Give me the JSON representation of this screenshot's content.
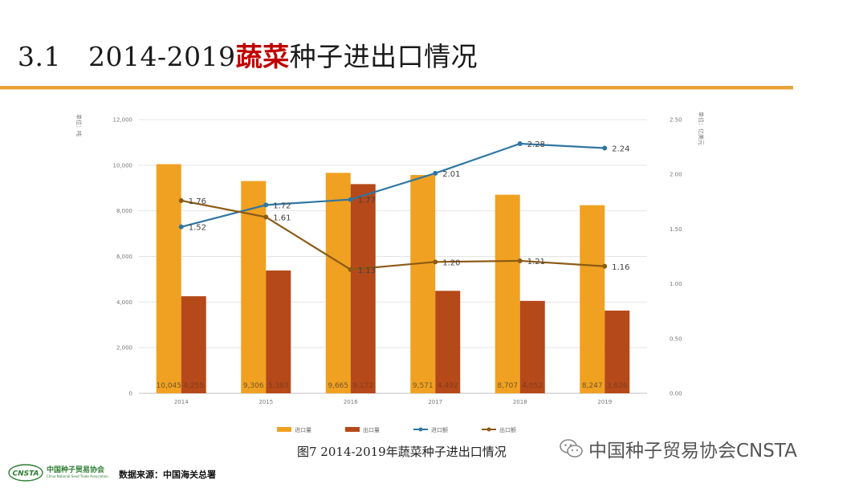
{
  "header": {
    "section_num": "3.1",
    "title_prefix": "2014-2019",
    "title_highlight": "蔬菜",
    "title_suffix": "种子进出口情况"
  },
  "chart_data": {
    "type": "bar",
    "categories": [
      "2014",
      "2015",
      "2016",
      "2017",
      "2018",
      "2019"
    ],
    "left_axis": {
      "label": "单位：吨",
      "ylim": [
        0,
        12000
      ],
      "ticks": [
        "0",
        "2,000",
        "4,000",
        "6,000",
        "8,000",
        "10,000",
        "12,000"
      ]
    },
    "right_axis": {
      "label": "单位：亿美元",
      "ylim": [
        0,
        2.5
      ],
      "ticks": [
        "0.00",
        "0.50",
        "1.00",
        "1.50",
        "2.00",
        "2.50"
      ]
    },
    "bar_series": [
      {
        "name": "进口量",
        "color": "#f0a121",
        "values": [
          10045,
          9306,
          9665,
          9571,
          8707,
          8247
        ],
        "labels": [
          "10,045",
          "9,306",
          "9,665",
          "9,571",
          "8,707",
          "8,247"
        ]
      },
      {
        "name": "出口量",
        "color": "#b5491a",
        "values": [
          4255,
          5383,
          9172,
          4492,
          4052,
          3626
        ],
        "labels": [
          "4,255",
          "5,383",
          "9,172",
          "4,492",
          "4,052",
          "3,626"
        ]
      }
    ],
    "line_series": [
      {
        "name": "进口额",
        "color": "#2f76a2",
        "values": [
          1.52,
          1.72,
          1.77,
          2.01,
          2.28,
          2.24
        ],
        "labels": [
          "1.52",
          "1.72",
          "1.77",
          "2.01",
          "2.28",
          "2.24"
        ]
      },
      {
        "name": "出口额",
        "color": "#8c5a14",
        "values": [
          1.76,
          1.61,
          1.13,
          1.2,
          1.21,
          1.16
        ],
        "labels": [
          "1.76",
          "1.61",
          "1.13",
          "1.20",
          "1.21",
          "1.16"
        ]
      }
    ],
    "legend_position": "bottom",
    "caption": "图7   2014-2019年蔬菜种子进出口情况"
  },
  "footer": {
    "source": "数据来源：中国海关总署",
    "org_name_cn": "中国种子贸易协会",
    "org_name_en": "China National Seed Trade Association",
    "logo_text": "CNSTA",
    "watermark": "中国种子贸易协会CNSTA"
  }
}
